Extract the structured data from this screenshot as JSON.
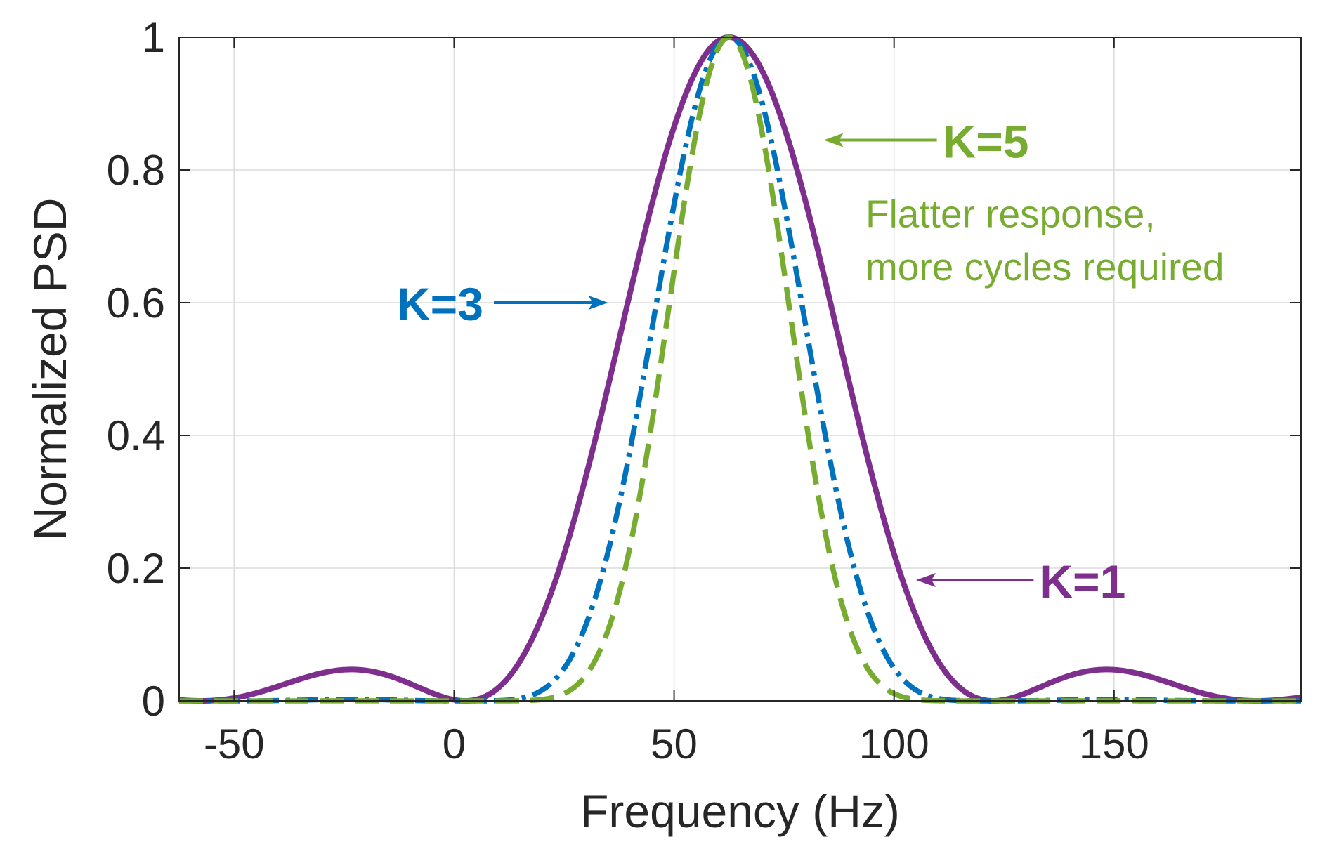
{
  "chart_data": {
    "type": "line",
    "title": "",
    "xlabel": "Frequency (Hz)",
    "ylabel": "Normalized PSD",
    "xlim": [
      -62.5,
      192.5
    ],
    "ylim": [
      0,
      1
    ],
    "xticks": [
      -50,
      0,
      50,
      100,
      150
    ],
    "xtick_labels": [
      "-50",
      "0",
      "50",
      "100",
      "150"
    ],
    "yticks": [
      0,
      0.2,
      0.4,
      0.6,
      0.8,
      1
    ],
    "ytick_labels": [
      "0",
      "0.2",
      "0.4",
      "0.6",
      "0.8",
      "1"
    ],
    "grid": true,
    "center_hz": 62.5,
    "null_spacing_hz": 60,
    "series": [
      {
        "name": "K=1",
        "K": 1,
        "color": "#7E2F8E",
        "style": "solid"
      },
      {
        "name": "K=3",
        "K": 3,
        "color": "#0072BD",
        "style": "dashdot"
      },
      {
        "name": "K=5",
        "K": 5,
        "color": "#77AC30",
        "style": "dashed"
      }
    ],
    "annotations": [
      {
        "id": "k5",
        "text": "K=5",
        "color": "#77AC30",
        "bold": true,
        "arrow_to": [
          84,
          0.845
        ],
        "text_at": [
          111,
          0.845
        ]
      },
      {
        "id": "k5-note-1",
        "text": "Flatter response,",
        "color": "#77AC30",
        "bold": false,
        "text_at": [
          93.5,
          0.735
        ]
      },
      {
        "id": "k5-note-2",
        "text": "more cycles required",
        "color": "#77AC30",
        "bold": false,
        "text_at": [
          93.5,
          0.655
        ]
      },
      {
        "id": "k3",
        "text": "K=3",
        "color": "#0072BD",
        "bold": true,
        "arrow_to": [
          35,
          0.6
        ],
        "text_at": [
          -13,
          0.6
        ]
      },
      {
        "id": "k1",
        "text": "K=1",
        "color": "#7E2F8E",
        "bold": true,
        "arrow_to": [
          105,
          0.182
        ],
        "text_at": [
          133,
          0.182
        ]
      }
    ]
  }
}
